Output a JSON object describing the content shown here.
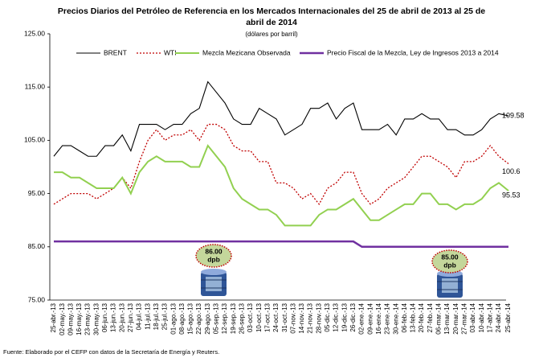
{
  "chart_data": {
    "type": "line",
    "title": "Precios Diarios del Petróleo de Referencia en los Mercados Internacionales del 25 de abril de 2013 al 25 de abril de 2014",
    "subtitle": "(dólares por barril)",
    "note": "Fuente: Elaborado por el CEFP con datos de la Secretaría de Energía y Reuters.",
    "categories": [
      "25-abr.-13",
      "02-may.-13",
      "09-may.-13",
      "16-may.-13",
      "23-may.-13",
      "30-may.-13",
      "06-jun.-13",
      "13-jun.-13",
      "20-jun.-13",
      "27-jun.-13",
      "04-jul.-13",
      "11-jul.-13",
      "18-jul.-13",
      "25-jul.-13",
      "01-ago.-13",
      "08-ago.-13",
      "15-ago.-13",
      "22-ago.-13",
      "29-ago.-13",
      "05-sep.-13",
      "12-sep.-13",
      "19-sep.-13",
      "26-sep.-13",
      "03-oct.-13",
      "10-oct.-13",
      "17-oct.-13",
      "24-oct.-13",
      "31-oct.-13",
      "07-nov.-13",
      "14-nov.-13",
      "21-nov.-13",
      "28-nov.-13",
      "05-dic.-13",
      "12-dic.-13",
      "19-dic.-13",
      "26-dic.-13",
      "02-ene.-14",
      "09-ene.-14",
      "16-ene.-14",
      "23-ene.-14",
      "30-ene.-14",
      "06-feb.-14",
      "13-feb.-14",
      "20-feb.-14",
      "27-feb.-14",
      "06-mar.-14",
      "13-mar.-14",
      "20-mar.-14",
      "27-mar.-14",
      "03-abr.-14",
      "10-abr.-14",
      "17-abr.-14",
      "24-abr.-14",
      "25-abr.-14"
    ],
    "series": [
      {
        "name": "BRENT",
        "color": "#000000",
        "values": [
          102,
          104,
          104,
          103,
          102,
          102,
          104,
          104,
          106,
          103,
          108,
          108,
          108,
          107,
          108,
          108,
          110,
          111,
          116,
          114,
          112,
          109,
          108,
          108,
          111,
          110,
          109,
          106,
          107,
          108,
          111,
          111,
          112,
          109,
          111,
          112,
          107,
          107,
          107,
          108,
          106,
          109,
          109,
          110,
          109,
          109,
          107,
          107,
          106,
          106,
          107,
          109,
          110,
          109.58
        ]
      },
      {
        "name": "WTI",
        "color": "#c00000",
        "values": [
          93,
          94,
          95,
          95,
          95,
          94,
          95,
          96,
          98,
          96,
          101,
          105,
          107,
          105,
          106,
          106,
          107,
          105,
          108,
          108,
          107,
          104,
          103,
          103,
          101,
          101,
          97,
          97,
          96,
          94,
          95,
          93,
          96,
          97,
          99,
          99,
          95,
          93,
          94,
          96,
          97,
          98,
          100,
          102,
          102,
          101,
          100,
          98,
          101,
          101,
          102,
          104,
          102,
          100.6
        ]
      },
      {
        "name": "Mezcla Mezicana Observada",
        "color": "#92d050",
        "values": [
          99,
          99,
          98,
          98,
          97,
          96,
          96,
          96,
          98,
          95,
          99,
          101,
          102,
          101,
          101,
          101,
          100,
          100,
          104,
          102,
          100,
          96,
          94,
          93,
          92,
          92,
          91,
          89,
          89,
          89,
          89,
          91,
          92,
          92,
          93,
          94,
          92,
          90,
          90,
          91,
          92,
          93,
          93,
          95,
          95,
          93,
          93,
          92,
          93,
          93,
          94,
          96,
          97,
          95.53
        ]
      },
      {
        "name": "Precio Fiscal de la Mezcla, Ley de Ingresos 2013 a 2014",
        "color": "#7030a0",
        "values": [
          86,
          86,
          86,
          86,
          86,
          86,
          86,
          86,
          86,
          86,
          86,
          86,
          86,
          86,
          86,
          86,
          86,
          86,
          86,
          86,
          86,
          86,
          86,
          86,
          86,
          86,
          86,
          86,
          86,
          86,
          86,
          86,
          86,
          86,
          86,
          86,
          85,
          85,
          85,
          85,
          85,
          85,
          85,
          85,
          85,
          85,
          85,
          85,
          85,
          85,
          85,
          85,
          85,
          85
        ]
      }
    ],
    "annotations": [
      {
        "lines": [
          "86.00",
          "dpb"
        ]
      },
      {
        "lines": [
          "85.00",
          "dpb"
        ]
      }
    ],
    "ylim": [
      75,
      125
    ],
    "yticks": [
      {
        "value": 75,
        "label": "75.00"
      },
      {
        "value": 85,
        "label": "85.00"
      },
      {
        "value": 95,
        "label": "95.00"
      },
      {
        "value": 105,
        "label": "105.00"
      },
      {
        "value": 115,
        "label": "115.00"
      },
      {
        "value": 125,
        "label": "125.00"
      }
    ]
  }
}
